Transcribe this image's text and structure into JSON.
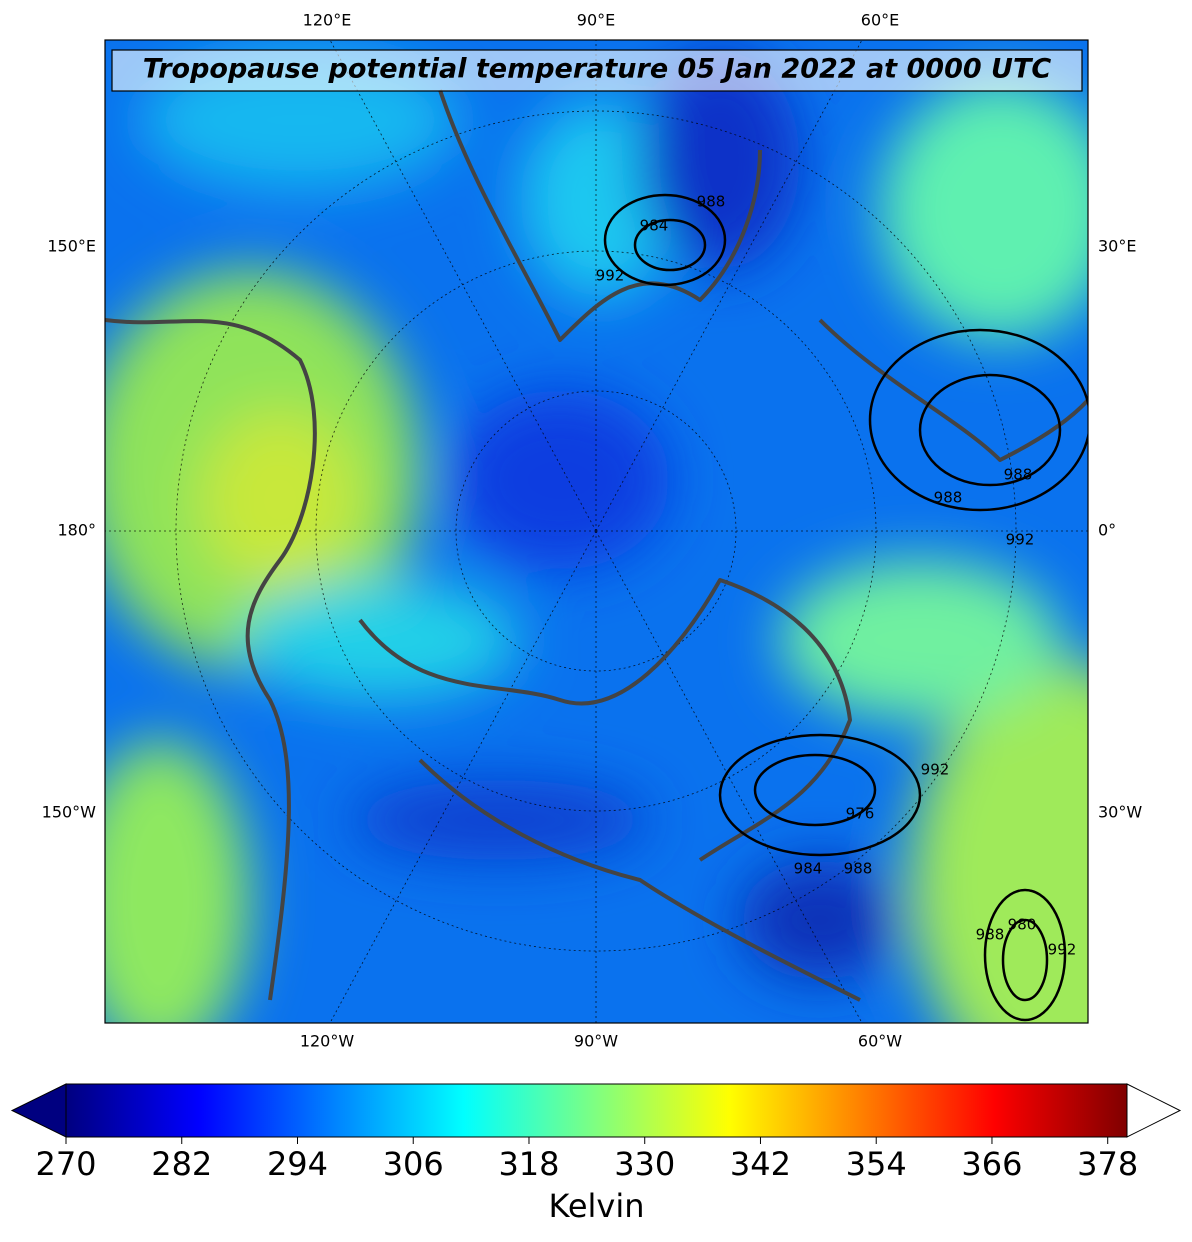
{
  "map": {
    "title": "Tropopause potential temperature 05 Jan 2022 at 0000 UTC",
    "top_labels": [
      "120°E",
      "90°E",
      "60°E"
    ],
    "bottom_labels": [
      "120°W",
      "90°W",
      "60°W"
    ],
    "left_labels": [
      "150°E",
      "180°",
      "150°W"
    ],
    "right_labels": [
      "30°E",
      "0°",
      "30°W"
    ],
    "contour_labels": [
      "988",
      "984",
      "992",
      "988",
      "992",
      "988",
      "976",
      "984",
      "988",
      "992",
      "980",
      "988",
      "992"
    ]
  },
  "colorbar": {
    "label": "Kelvin",
    "colormap": "jet",
    "lim": [
      270,
      380
    ],
    "ticks": [
      270,
      282,
      294,
      306,
      318,
      330,
      342,
      354,
      366,
      378
    ],
    "extend": "both"
  }
}
